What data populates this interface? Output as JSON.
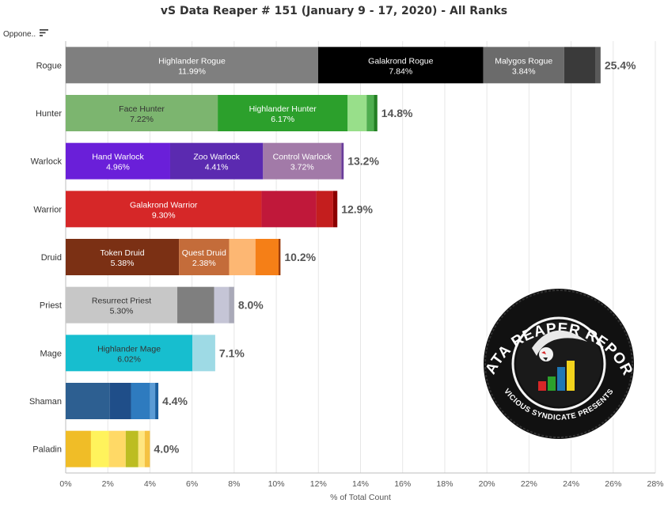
{
  "header": {
    "title": "vS Data Reaper # 151 (January 9 - 17, 2020) - All Ranks",
    "column_label": "Oppone.."
  },
  "icons": {
    "sort": "sort-descending-icon"
  },
  "logo": {
    "name": "data-reaper-report-logo",
    "text_top": "DATA REAPER REPORT",
    "text_bottom": "VICIOUS SYNDICATE PRESENTS"
  },
  "chart_data": {
    "type": "bar",
    "orientation": "horizontal",
    "stacked": true,
    "title": "vS Data Reaper # 151 (January 9 - 17, 2020) - All Ranks",
    "xlabel": "% of Total Count",
    "ylabel": "",
    "xlim": [
      0,
      28
    ],
    "xticks": [
      "0%",
      "2%",
      "4%",
      "6%",
      "8%",
      "10%",
      "12%",
      "14%",
      "16%",
      "18%",
      "20%",
      "22%",
      "24%",
      "26%",
      "28%"
    ],
    "grid": "vertical",
    "categories": [
      "Rogue",
      "Hunter",
      "Warlock",
      "Warrior",
      "Druid",
      "Priest",
      "Mage",
      "Shaman",
      "Paladin"
    ],
    "totals": [
      "25.4%",
      "14.8%",
      "13.2%",
      "12.9%",
      "10.2%",
      "8.0%",
      "7.1%",
      "4.4%",
      "4.0%"
    ],
    "bars": [
      {
        "category": "Rogue",
        "segments": [
          {
            "name": "Highlander Rogue",
            "label": "11.99%",
            "value": 11.99,
            "color": "#7f7f7f",
            "text_color": "#ffffff"
          },
          {
            "name": "Galakrond Rogue",
            "label": "7.84%",
            "value": 7.84,
            "color": "#000000",
            "text_color": "#ffffff"
          },
          {
            "name": "Malygos Rogue",
            "label": "3.84%",
            "value": 3.84,
            "color": "#6b6b6b",
            "text_color": "#ffffff"
          },
          {
            "name": "",
            "label": "",
            "value": 1.5,
            "color": "#3a3a3a",
            "text_color": "#ffffff"
          },
          {
            "name": "",
            "label": "",
            "value": 0.23,
            "color": "#595959",
            "text_color": "#ffffff"
          }
        ]
      },
      {
        "category": "Hunter",
        "segments": [
          {
            "name": "Face Hunter",
            "label": "7.22%",
            "value": 7.22,
            "color": "#7cb56f",
            "text_color": "#333333"
          },
          {
            "name": "Highlander Hunter",
            "label": "6.17%",
            "value": 6.17,
            "color": "#2ca02c",
            "text_color": "#ffffff"
          },
          {
            "name": "",
            "label": "",
            "value": 0.9,
            "color": "#98df8a",
            "text_color": "#333333"
          },
          {
            "name": "",
            "label": "",
            "value": 0.35,
            "color": "#4fae4f",
            "text_color": "#333333"
          },
          {
            "name": "",
            "label": "",
            "value": 0.16,
            "color": "#237f23",
            "text_color": "#333333"
          }
        ]
      },
      {
        "category": "Warlock",
        "segments": [
          {
            "name": "Hand Warlock",
            "label": "4.96%",
            "value": 4.96,
            "color": "#6a1fd9",
            "text_color": "#ffffff"
          },
          {
            "name": "Zoo Warlock",
            "label": "4.41%",
            "value": 4.41,
            "color": "#5b2ab0",
            "text_color": "#ffffff"
          },
          {
            "name": "Control Warlock",
            "label": "3.72%",
            "value": 3.72,
            "color": "#a27aa8",
            "text_color": "#ffffff"
          },
          {
            "name": "",
            "label": "",
            "value": 0.11,
            "color": "#6a3d9a",
            "text_color": "#ffffff"
          }
        ]
      },
      {
        "category": "Warrior",
        "segments": [
          {
            "name": "Galakrond Warrior",
            "label": "9.30%",
            "value": 9.3,
            "color": "#d62728",
            "text_color": "#ffffff"
          },
          {
            "name": "",
            "label": "",
            "value": 2.6,
            "color": "#c0183a",
            "text_color": "#ffffff"
          },
          {
            "name": "",
            "label": "",
            "value": 0.8,
            "color": "#c41e1e",
            "text_color": "#ffffff"
          },
          {
            "name": "",
            "label": "",
            "value": 0.2,
            "color": "#8b0000",
            "text_color": "#ffffff"
          }
        ]
      },
      {
        "category": "Druid",
        "segments": [
          {
            "name": "Token Druid",
            "label": "5.38%",
            "value": 5.38,
            "color": "#7b3014",
            "text_color": "#ffffff"
          },
          {
            "name": "Quest Druid",
            "label": "2.38%",
            "value": 2.38,
            "color": "#c46c3a",
            "text_color": "#ffffff"
          },
          {
            "name": "",
            "label": "",
            "value": 1.25,
            "color": "#fdb773",
            "text_color": "#333333"
          },
          {
            "name": "",
            "label": "",
            "value": 1.1,
            "color": "#f57f17",
            "text_color": "#333333"
          },
          {
            "name": "",
            "label": "",
            "value": 0.09,
            "color": "#9a3d0d",
            "text_color": "#333333"
          }
        ]
      },
      {
        "category": "Priest",
        "segments": [
          {
            "name": "Resurrect Priest",
            "label": "5.30%",
            "value": 5.3,
            "color": "#c7c7c7",
            "text_color": "#333333"
          },
          {
            "name": "",
            "label": "",
            "value": 1.75,
            "color": "#7f7f7f",
            "text_color": "#333333"
          },
          {
            "name": "",
            "label": "",
            "value": 0.7,
            "color": "#c5c5d6",
            "text_color": "#333333"
          },
          {
            "name": "",
            "label": "",
            "value": 0.25,
            "color": "#a9a9b8",
            "text_color": "#333333"
          }
        ]
      },
      {
        "category": "Mage",
        "segments": [
          {
            "name": "Highlander Mage",
            "label": "6.02%",
            "value": 6.02,
            "color": "#17becf",
            "text_color": "#333333"
          },
          {
            "name": "",
            "label": "",
            "value": 1.08,
            "color": "#9edae5",
            "text_color": "#333333"
          }
        ]
      },
      {
        "category": "Shaman",
        "segments": [
          {
            "name": "",
            "label": "",
            "value": 2.1,
            "color": "#2d5f91",
            "text_color": "#ffffff"
          },
          {
            "name": "",
            "label": "",
            "value": 1.0,
            "color": "#1f4e89",
            "text_color": "#ffffff"
          },
          {
            "name": "",
            "label": "",
            "value": 0.9,
            "color": "#2e7bbf",
            "text_color": "#ffffff"
          },
          {
            "name": "",
            "label": "",
            "value": 0.25,
            "color": "#5a9bd5",
            "text_color": "#ffffff"
          },
          {
            "name": "",
            "label": "",
            "value": 0.15,
            "color": "#1a5e9e",
            "text_color": "#ffffff"
          }
        ]
      },
      {
        "category": "Paladin",
        "segments": [
          {
            "name": "",
            "label": "",
            "value": 1.2,
            "color": "#f0bd27",
            "text_color": "#333333"
          },
          {
            "name": "",
            "label": "",
            "value": 0.85,
            "color": "#fff35c",
            "text_color": "#333333"
          },
          {
            "name": "",
            "label": "",
            "value": 0.8,
            "color": "#ffd966",
            "text_color": "#333333"
          },
          {
            "name": "",
            "label": "",
            "value": 0.6,
            "color": "#bcbd22",
            "text_color": "#333333"
          },
          {
            "name": "",
            "label": "",
            "value": 0.3,
            "color": "#ffe680",
            "text_color": "#333333"
          },
          {
            "name": "",
            "label": "",
            "value": 0.25,
            "color": "#f5c242",
            "text_color": "#333333"
          }
        ]
      }
    ]
  }
}
